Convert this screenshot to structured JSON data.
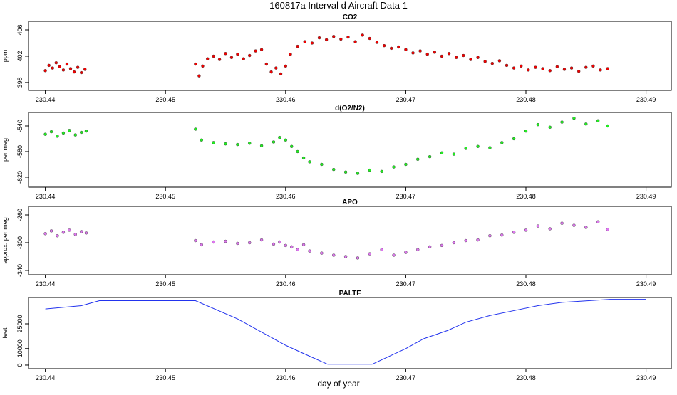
{
  "title": "160817a   Interval d Aircraft Data 1",
  "xlabel": "day of year",
  "chart_data": [
    {
      "type": "scatter",
      "title": "CO2",
      "ylabel": "ppm",
      "color": "#ee0000",
      "x": [
        230.44,
        230.4403,
        230.4406,
        230.4409,
        230.4412,
        230.4415,
        230.4418,
        230.4421,
        230.4424,
        230.4427,
        230.443,
        230.4433,
        230.4525,
        230.4528,
        230.4531,
        230.4535,
        230.454,
        230.4545,
        230.455,
        230.4555,
        230.456,
        230.4565,
        230.457,
        230.4575,
        230.458,
        230.4584,
        230.4588,
        230.4592,
        230.4596,
        230.46,
        230.4604,
        230.461,
        230.4616,
        230.4622,
        230.4628,
        230.4634,
        230.464,
        230.4646,
        230.4652,
        230.4658,
        230.4664,
        230.467,
        230.4676,
        230.4682,
        230.4688,
        230.4694,
        230.47,
        230.4706,
        230.4712,
        230.4718,
        230.4724,
        230.473,
        230.4736,
        230.4742,
        230.4748,
        230.4754,
        230.476,
        230.4766,
        230.4772,
        230.4778,
        230.4784,
        230.479,
        230.4796,
        230.4802,
        230.4808,
        230.4814,
        230.482,
        230.4826,
        230.4832,
        230.4838,
        230.4844,
        230.485,
        230.4856,
        230.4862,
        230.4868
      ],
      "values": [
        399.8,
        400.6,
        400.2,
        401.0,
        400.4,
        399.9,
        400.8,
        400.1,
        399.6,
        400.3,
        399.5,
        400.0,
        400.8,
        399.0,
        400.5,
        401.6,
        402.0,
        401.5,
        402.4,
        401.8,
        402.3,
        401.6,
        402.1,
        402.8,
        403.0,
        400.8,
        399.6,
        400.2,
        399.3,
        400.5,
        402.3,
        403.5,
        404.2,
        404.0,
        404.8,
        404.5,
        405.0,
        404.6,
        404.9,
        404.2,
        405.2,
        404.7,
        404.1,
        403.6,
        403.2,
        403.4,
        403.0,
        402.5,
        402.8,
        402.3,
        402.6,
        402.0,
        402.4,
        401.8,
        402.1,
        401.5,
        401.8,
        401.2,
        400.9,
        401.3,
        400.6,
        400.2,
        400.5,
        399.9,
        400.3,
        400.1,
        399.8,
        400.4,
        400.0,
        400.2,
        399.7,
        400.3,
        400.5,
        399.9,
        400.1
      ],
      "xlim": [
        230.4386,
        230.4921
      ],
      "xticks": [
        230.44,
        230.45,
        230.46,
        230.47,
        230.48,
        230.49
      ],
      "ylim": [
        396.8,
        407.3
      ],
      "yticks": [
        398,
        402,
        406
      ]
    },
    {
      "type": "scatter",
      "title": "d(O2/N2)",
      "ylabel": "per meg",
      "color": "#22ee22",
      "x": [
        230.44,
        230.4405,
        230.441,
        230.4415,
        230.442,
        230.4425,
        230.443,
        230.4434,
        230.4525,
        230.453,
        230.454,
        230.455,
        230.456,
        230.457,
        230.458,
        230.459,
        230.4595,
        230.46,
        230.4605,
        230.461,
        230.4615,
        230.462,
        230.463,
        230.464,
        230.465,
        230.466,
        230.467,
        230.468,
        230.469,
        230.47,
        230.471,
        230.472,
        230.473,
        230.474,
        230.475,
        230.476,
        230.477,
        230.478,
        230.479,
        230.48,
        230.481,
        230.482,
        230.483,
        230.484,
        230.485,
        230.486,
        230.4868
      ],
      "values": [
        -553,
        -549,
        -556,
        -551,
        -547,
        -554,
        -550,
        -548,
        -545,
        -562,
        -566,
        -568,
        -569,
        -567,
        -571,
        -565,
        -558,
        -562,
        -572,
        -580,
        -590,
        -596,
        -600,
        -608,
        -612,
        -614,
        -609,
        -611,
        -604,
        -600,
        -592,
        -588,
        -582,
        -584,
        -575,
        -572,
        -574,
        -566,
        -560,
        -548,
        -538,
        -542,
        -534,
        -528,
        -537,
        -532,
        -540
      ],
      "xlim": [
        230.4386,
        230.4921
      ],
      "xticks": [
        230.44,
        230.45,
        230.46,
        230.47,
        230.48,
        230.49
      ],
      "ylim": [
        -635.6,
        -518.9
      ],
      "yticks": [
        -540,
        -580,
        -620
      ]
    },
    {
      "type": "scatter",
      "title": "APO",
      "ylabel": "approx. per meg",
      "color": "#dd77ee",
      "x": [
        230.44,
        230.4405,
        230.441,
        230.4415,
        230.442,
        230.4425,
        230.443,
        230.4434,
        230.4525,
        230.453,
        230.454,
        230.455,
        230.456,
        230.457,
        230.458,
        230.459,
        230.4595,
        230.46,
        230.4605,
        230.461,
        230.4615,
        230.462,
        230.463,
        230.464,
        230.465,
        230.466,
        230.467,
        230.468,
        230.469,
        230.47,
        230.471,
        230.472,
        230.473,
        230.474,
        230.475,
        230.476,
        230.477,
        230.478,
        230.479,
        230.48,
        230.481,
        230.482,
        230.483,
        230.484,
        230.485,
        230.486,
        230.4868
      ],
      "values": [
        -287,
        -283,
        -290,
        -285,
        -282,
        -288,
        -284,
        -286,
        -297,
        -303,
        -299,
        -298,
        -301,
        -300,
        -296,
        -302,
        -299,
        -304,
        -306,
        -310,
        -303,
        -312,
        -315,
        -318,
        -320,
        -322,
        -316,
        -310,
        -318,
        -314,
        -310,
        -306,
        -304,
        -300,
        -297,
        -296,
        -290,
        -289,
        -285,
        -282,
        -276,
        -280,
        -272,
        -275,
        -278,
        -270,
        -281
      ],
      "xlim": [
        230.4386,
        230.4921
      ],
      "xticks": [
        230.44,
        230.45,
        230.46,
        230.47,
        230.48,
        230.49
      ],
      "ylim": [
        -346.2,
        -247.7
      ],
      "yticks": [
        -260,
        -300,
        -340
      ]
    },
    {
      "type": "line",
      "title": "PALTF",
      "ylabel": "feet",
      "color": "#2233ee",
      "x": [
        230.44,
        230.443,
        230.4445,
        230.446,
        230.4525,
        230.456,
        230.46,
        230.4615,
        230.4635,
        230.4672,
        230.47,
        230.4715,
        230.4735,
        230.475,
        230.477,
        230.479,
        230.481,
        230.483,
        230.487,
        230.49
      ],
      "values": [
        34000,
        36000,
        39000,
        39000,
        39000,
        28000,
        12000,
        7000,
        500,
        500,
        10000,
        16000,
        21000,
        26000,
        30000,
        33000,
        36000,
        38000,
        39800,
        39800
      ],
      "xlim": [
        230.4386,
        230.4921
      ],
      "xticks": [
        230.44,
        230.45,
        230.46,
        230.47,
        230.48,
        230.49
      ],
      "ylim": [
        -2170,
        40950
      ],
      "yticks": [
        0,
        10000,
        25000
      ]
    }
  ]
}
